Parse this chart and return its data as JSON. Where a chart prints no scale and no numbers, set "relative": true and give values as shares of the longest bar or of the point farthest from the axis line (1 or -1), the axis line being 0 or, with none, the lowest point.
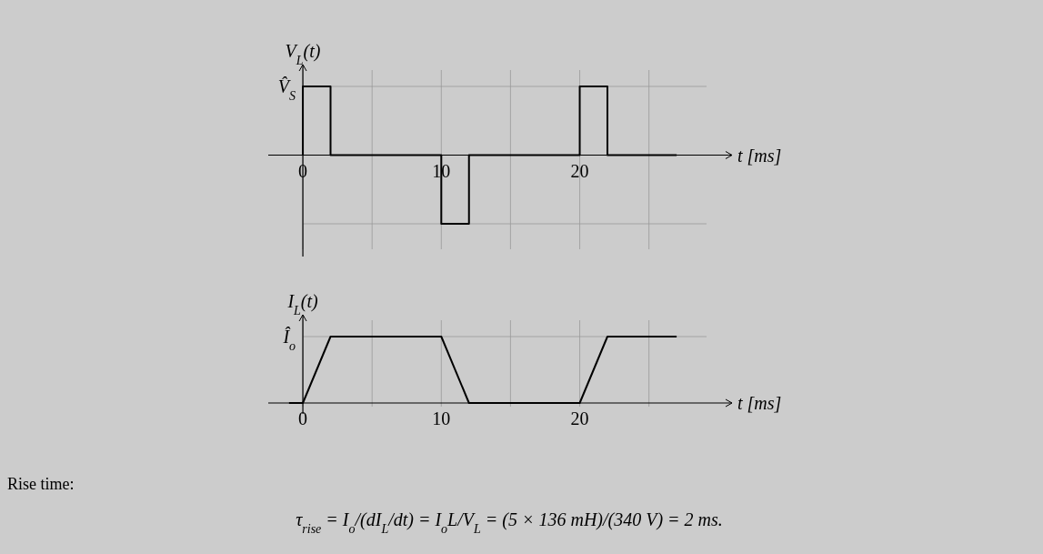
{
  "chart_data": [
    {
      "type": "line",
      "ylabel": "V$_{L}$(t)",
      "xlabel": "t [ms]",
      "relative": true,
      "grid": true,
      "xlim": [
        -2.5,
        31
      ],
      "xticks": [
        0,
        {
          "value": 5,
          "label": null
        },
        10,
        {
          "value": 15,
          "label": null
        },
        20,
        {
          "value": 25,
          "label": null
        }
      ],
      "series": [
        {
          "color": "#000000",
          "x": [
            0,
            0,
            2,
            2,
            10,
            10,
            12,
            12,
            20,
            20,
            22,
            22,
            27
          ],
          "values": [
            0,
            1,
            1,
            0,
            0,
            -1,
            -1,
            0,
            0,
            1,
            1,
            0,
            0
          ]
        }
      ],
      "annotations": [
        "V̂$_{S}$"
      ]
    },
    {
      "type": "line",
      "ylabel": "I$_{L}$(t)",
      "xlabel": "t [ms]",
      "relative": true,
      "grid": true,
      "xlim": [
        -2.5,
        31
      ],
      "xticks": [
        0,
        {
          "value": 5,
          "label": null
        },
        10,
        {
          "value": 15,
          "label": null
        },
        20,
        {
          "value": 25,
          "label": null
        }
      ],
      "series": [
        {
          "color": "#000000",
          "x": [
            -1,
            0,
            2,
            10,
            12,
            20,
            22,
            27
          ],
          "values": [
            0,
            0,
            1,
            1,
            0,
            0,
            1,
            1
          ]
        }
      ],
      "annotations": [
        "Î$_{o}$",
        "Rise time:",
        "τ$_{rise}$ = I$_{o}$/(dI$_{L}$/dt) = I$_{o}$L/V$_{L}$ = (5 × 136 mH)/(340 V) = 2 ms."
      ]
    }
  ]
}
